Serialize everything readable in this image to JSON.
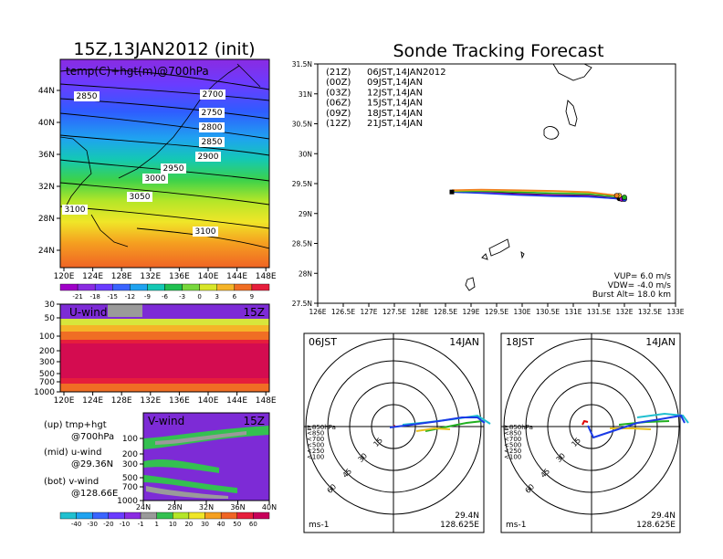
{
  "left": {
    "title": "15Z,13JAN2012 (init)",
    "map": {
      "label": "temp(C)+hgt(m)@700hPa",
      "x_ticks": [
        "120E",
        "124E",
        "128E",
        "132E",
        "136E",
        "140E",
        "144E",
        "148E"
      ],
      "y_ticks": [
        "24N",
        "28N",
        "32N",
        "36N",
        "40N",
        "44N"
      ],
      "contour_labels": [
        "2700",
        "2750",
        "2800",
        "2850",
        "2850",
        "2900",
        "2950",
        "3000",
        "3050",
        "3100",
        "3100"
      ]
    },
    "temp_colorbar": {
      "labels": [
        "-21",
        "-18",
        "-15",
        "-12",
        "-9",
        "-6",
        "-3",
        "0",
        "3",
        "6",
        "9"
      ]
    },
    "uwind": {
      "label": "U-wind",
      "time": "15Z",
      "y_ticks": [
        "30",
        "50",
        "100",
        "200",
        "300",
        "500",
        "700",
        "1000"
      ],
      "x_ticks": [
        "120E",
        "124E",
        "128E",
        "132E",
        "136E",
        "140E",
        "144E",
        "148E"
      ]
    },
    "vwind": {
      "label": "V-wind",
      "time": "15Z",
      "y_ticks": [
        "100",
        "200",
        "300",
        "500",
        "700",
        "1000"
      ],
      "x_ticks": [
        "24N",
        "28N",
        "32N",
        "36N",
        "40N"
      ]
    },
    "notes": [
      {
        "head": "(up) tmp+hgt",
        "sub": "@700hPa"
      },
      {
        "head": "(mid) u-wind",
        "sub": "@29.36N"
      },
      {
        "head": "(bot) v-wind",
        "sub": "@128.66E"
      }
    ],
    "wind_colorbar": {
      "labels": [
        "-40",
        "-30",
        "-20",
        "-10",
        "-1",
        "1",
        "10",
        "20",
        "30",
        "40",
        "50",
        "60"
      ]
    }
  },
  "right": {
    "title": "Sonde Tracking Forecast",
    "legend": [
      {
        "code": "(21Z)",
        "time": "06JST,14JAN2012",
        "color": "#000000"
      },
      {
        "code": "(00Z)",
        "time": "09JST,14JAN",
        "color": "#b000d0"
      },
      {
        "code": "(03Z)",
        "time": "12JST,14JAN",
        "color": "#1a3ae6"
      },
      {
        "code": "(06Z)",
        "time": "15JST,14JAN",
        "color": "#20b020"
      },
      {
        "code": "(09Z)",
        "time": "18JST,14JAN",
        "color": "#e8c020"
      },
      {
        "code": "(12Z)",
        "time": "21JST,14JAN",
        "color": "#f08020"
      }
    ],
    "params": [
      "VUP=  6.0  m/s",
      "VDW= -4.0  m/s",
      "Burst Alt=  18.0  km"
    ],
    "x_ticks": [
      "126E",
      "126.5E",
      "127E",
      "127.5E",
      "128E",
      "128.5E",
      "129E",
      "129.5E",
      "130E",
      "130.5E",
      "131E",
      "131.5E",
      "132E",
      "132.5E",
      "133E"
    ],
    "y_ticks": [
      "27.5N",
      "28N",
      "28.5N",
      "29N",
      "29.5N",
      "30N",
      "30.5N",
      "31N",
      "31.5N"
    ]
  },
  "polar": [
    {
      "time": "06JST",
      "date": "14JAN",
      "unit": "ms-1",
      "lat": "29.4N",
      "lon": "128.625E",
      "ring_labels": [
        "15",
        "30",
        "45",
        "60"
      ]
    },
    {
      "time": "18JST",
      "date": "14JAN",
      "unit": "ms-1",
      "lat": "29.4N",
      "lon": "128.625E",
      "ring_labels": [
        "15",
        "30",
        "45",
        "60"
      ]
    }
  ],
  "pressure_legend": [
    {
      "label": "≧850hPa",
      "color": "#e00000"
    },
    {
      "label": "<850",
      "color": "#f08020"
    },
    {
      "label": "<700",
      "color": "#e8c020"
    },
    {
      "label": "<500",
      "color": "#20b020"
    },
    {
      "label": "<250",
      "color": "#20c0d0"
    },
    {
      "label": "<100",
      "color": "#1a3ae6"
    }
  ],
  "chart_data": [
    {
      "type": "heatmap",
      "title": "15Z,13JAN2012 (init)",
      "annotation": "temp(C)+hgt(m)@700hPa",
      "x_range": [
        "120E",
        "149E"
      ],
      "y_range": [
        "22N",
        "47N"
      ],
      "temperature_bands_C": [
        -21,
        -18,
        -15,
        -12,
        -9,
        -6,
        -3,
        0,
        3,
        6,
        9
      ],
      "height_contours_m": [
        2700,
        2750,
        2800,
        2850,
        2900,
        2950,
        3000,
        3050,
        3100
      ]
    },
    {
      "type": "heatmap",
      "title": "U-wind",
      "annotation": "15Z",
      "x_range": [
        "120E",
        "149E"
      ],
      "pressure_levels_hPa": [
        30,
        50,
        100,
        200,
        300,
        500,
        700,
        1000
      ]
    },
    {
      "type": "heatmap",
      "title": "V-wind",
      "annotation": "15Z",
      "x_range": [
        "24N",
        "40N"
      ],
      "pressure_levels_hPa": [
        100,
        200,
        300,
        500,
        700,
        1000
      ],
      "wind_bands_ms": [
        -40,
        -30,
        -20,
        -10,
        -1,
        1,
        10,
        20,
        30,
        40,
        50,
        60
      ]
    },
    {
      "type": "line",
      "title": "Sonde Tracking Forecast",
      "xlim": [
        126,
        133
      ],
      "ylim": [
        27.5,
        31.5
      ],
      "launch": {
        "lon": 128.625,
        "lat": 29.36
      },
      "series": [
        {
          "name": "(21Z)",
          "lon": [
            128.625,
            129.2,
            129.9,
            130.6,
            131.3,
            131.9
          ],
          "lat": [
            29.36,
            29.36,
            29.33,
            29.31,
            29.3,
            29.25
          ]
        },
        {
          "name": "(00Z)",
          "lon": [
            128.625,
            129.2,
            129.9,
            130.6,
            131.3,
            131.95
          ],
          "lat": [
            29.36,
            29.35,
            29.32,
            29.3,
            29.29,
            29.24
          ]
        },
        {
          "name": "(03Z)",
          "lon": [
            128.625,
            129.2,
            129.9,
            130.6,
            131.3,
            132.0
          ],
          "lat": [
            29.36,
            29.34,
            29.31,
            29.29,
            29.28,
            29.24
          ]
        },
        {
          "name": "(06Z)",
          "lon": [
            128.625,
            129.2,
            129.9,
            130.6,
            131.3,
            132.0
          ],
          "lat": [
            29.37,
            29.37,
            29.36,
            29.34,
            29.33,
            29.27
          ]
        },
        {
          "name": "(09Z)",
          "lon": [
            128.625,
            129.2,
            129.9,
            130.6,
            131.3,
            131.9
          ],
          "lat": [
            29.38,
            29.39,
            29.38,
            29.37,
            29.35,
            29.3
          ]
        },
        {
          "name": "(12Z)",
          "lon": [
            128.625,
            129.2,
            129.9,
            130.6,
            131.3,
            131.85
          ],
          "lat": [
            29.39,
            29.4,
            29.39,
            29.38,
            29.36,
            29.3
          ]
        }
      ]
    }
  ]
}
